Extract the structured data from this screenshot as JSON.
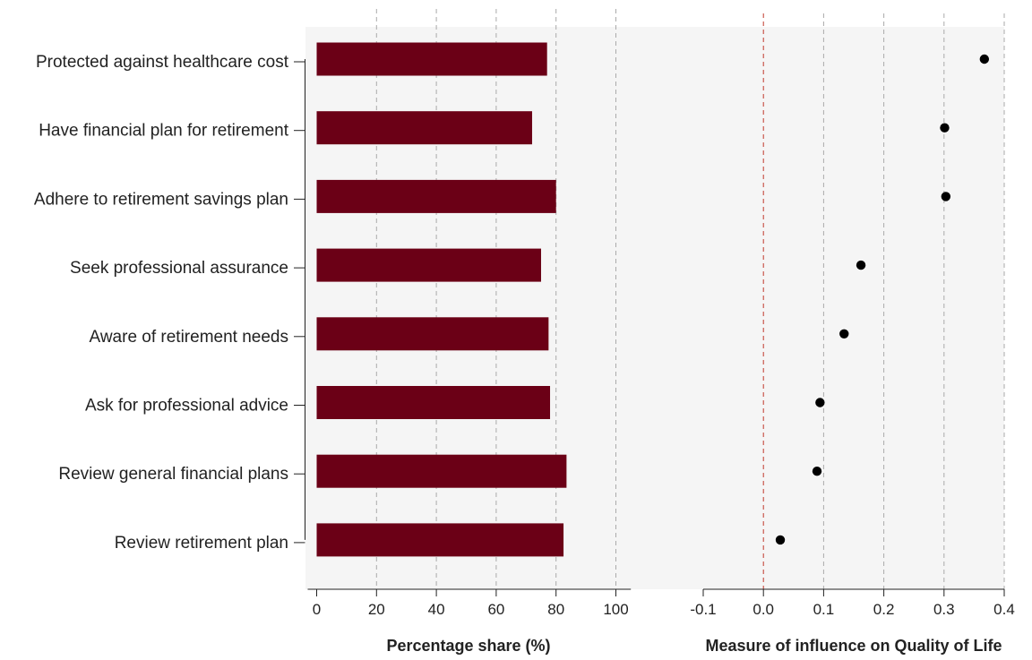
{
  "chart_data": [
    {
      "type": "bar",
      "orientation": "horizontal",
      "categories": [
        "Protected against healthcare cost",
        "Have financial plan for retirement",
        "Adhere to retirement savings plan",
        "Seek professional assurance",
        "Aware of retirement needs",
        "Ask for professional advice",
        "Review general financial plans",
        "Review retirement plan"
      ],
      "values": [
        77,
        72,
        80,
        75,
        77.5,
        78,
        83.5,
        82.5
      ],
      "xlabel": "Percentage share (%)",
      "xlim": [
        -3,
        105
      ],
      "xticks": [
        0,
        20,
        40,
        60,
        80,
        100
      ],
      "xtick_labels": [
        "0",
        "20",
        "40",
        "60",
        "80",
        "100"
      ],
      "grid": "vertical-dashed",
      "bar_color": "#6b0016"
    },
    {
      "type": "scatter",
      "categories": [
        "Protected against healthcare cost",
        "Have financial plan for retirement",
        "Adhere to retirement savings plan",
        "Seek professional assurance",
        "Aware of retirement needs",
        "Ask for professional advice",
        "Review general financial plans",
        "Review retirement plan"
      ],
      "values": [
        0.367,
        0.301,
        0.303,
        0.162,
        0.134,
        0.094,
        0.089,
        0.028
      ],
      "xlabel": "Measure of influence on Quality of Life",
      "xlim": [
        -0.1,
        0.4
      ],
      "xticks": [
        -0.1,
        0.0,
        0.1,
        0.2,
        0.3,
        0.4
      ],
      "xtick_labels": [
        "-0.1",
        "0.0",
        "0.1",
        "0.2",
        "0.3",
        "0.4"
      ],
      "reference_line": 0,
      "grid": "vertical-dashed",
      "marker_color": "#000000"
    }
  ],
  "colors": {
    "bar": "#6b0016",
    "panel_background": "#f5f5f5",
    "grid": "#aaaaaa",
    "reference_line": "#c0392b",
    "marker": "#000000"
  }
}
